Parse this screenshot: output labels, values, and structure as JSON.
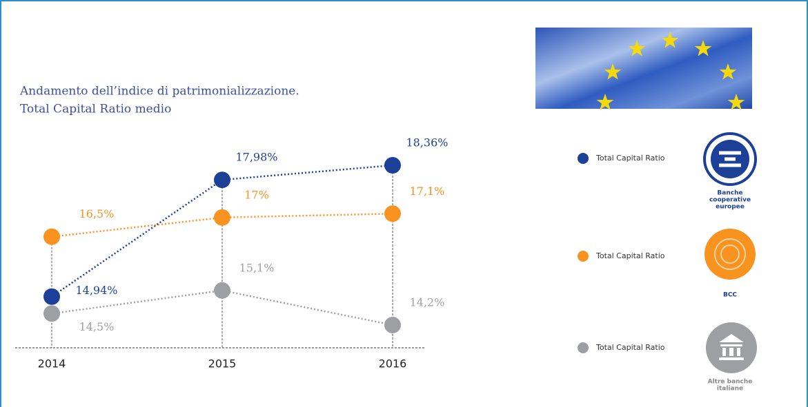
{
  "chart_data": {
    "type": "line",
    "title_lines": [
      "Andamento dell’indice di patrimonializzazione.",
      "Total Capital Ratio medio"
    ],
    "categories": [
      "2014",
      "2015",
      "2016"
    ],
    "series": [
      {
        "name": "Total Capital Ratio",
        "color": "#1c3f98",
        "values": [
          14.94,
          17.98,
          18.36
        ],
        "value_labels": [
          "14,94%",
          "17,98%",
          "18,36%"
        ],
        "logo_label": [
          "Banche",
          "cooperative",
          "europee"
        ]
      },
      {
        "name": "Total Capital Ratio",
        "color": "#f7931e",
        "values": [
          16.5,
          17,
          17.1
        ],
        "value_labels": [
          "16,5%",
          "17%",
          "17,1%"
        ],
        "logo_label": [
          "BCC"
        ]
      },
      {
        "name": "Total Capital Ratio",
        "color": "#9d9fa2",
        "values": [
          14.5,
          15.1,
          14.2
        ],
        "value_labels": [
          "14,5%",
          "15,1%",
          "14,2%"
        ],
        "logo_label": [
          "Altre banche",
          "italiane"
        ]
      }
    ]
  }
}
